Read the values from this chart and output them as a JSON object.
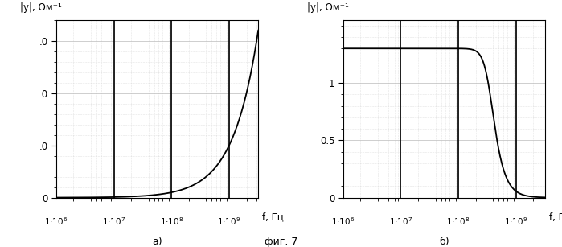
{
  "ylabel_a": "|y|, Ом⁻¹",
  "ylabel_b": "|y|, Ом⁻¹",
  "xlabel": "f, Гц",
  "label_a": "а)",
  "label_b": "б)",
  "fig_label": "фиг. 7",
  "f_min": 1000000.0,
  "f_max": 3200000000.0,
  "yticks_a": [
    0,
    1.0,
    2.0,
    3.0
  ],
  "ylabels_a": [
    "0",
    ".0",
    ".0",
    ".0"
  ],
  "ylim_a": [
    0,
    3.4
  ],
  "yticks_b": [
    0,
    0.5,
    1.0
  ],
  "ylabels_b": [
    "0",
    "0.5",
    "1"
  ],
  "ylim_b": [
    0,
    1.55
  ],
  "vlines_x": [
    10000000.0,
    100000000.0,
    1000000000.0
  ],
  "xticks": [
    1000000.0,
    10000000.0,
    100000000.0,
    1000000000.0
  ],
  "xlabels": [
    "1·10⁶",
    "1·10⁷",
    "1·10⁸",
    "1·10⁹"
  ],
  "curve_color": "#000000",
  "grid_major_color": "#bbbbbb",
  "grid_minor_color": "#cccccc",
  "bg_color": "#ffffff",
  "C_value": 1.59e-10,
  "f0_b": 350000000.0,
  "ymax_b": 1.3,
  "order_b": 3
}
